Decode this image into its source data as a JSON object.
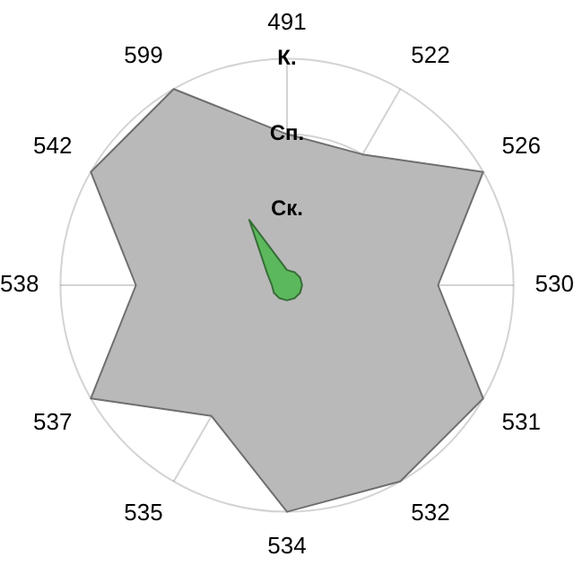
{
  "chart_data": {
    "type": "radar",
    "categories": [
      "491",
      "522",
      "526",
      "530",
      "531",
      "532",
      "534",
      "535",
      "537",
      "538",
      "542",
      "599"
    ],
    "ylim": [
      0,
      3
    ],
    "yticks": [
      {
        "value": 1,
        "label": "Ск."
      },
      {
        "value": 2,
        "label": "Сп."
      },
      {
        "value": 3,
        "label": "К."
      }
    ],
    "grid": true,
    "legend": false,
    "marker": "none",
    "series": [
      {
        "color": "#b9b9b9",
        "values": [
          2,
          2,
          3,
          2,
          3,
          3,
          3,
          2,
          3,
          2,
          3,
          3
        ]
      },
      {
        "color": "#5cb85c",
        "values": [
          0.2,
          0.2,
          0.2,
          0.2,
          0.2,
          0.2,
          0.2,
          0.2,
          0.2,
          0.2,
          0.3,
          1
        ]
      }
    ]
  }
}
